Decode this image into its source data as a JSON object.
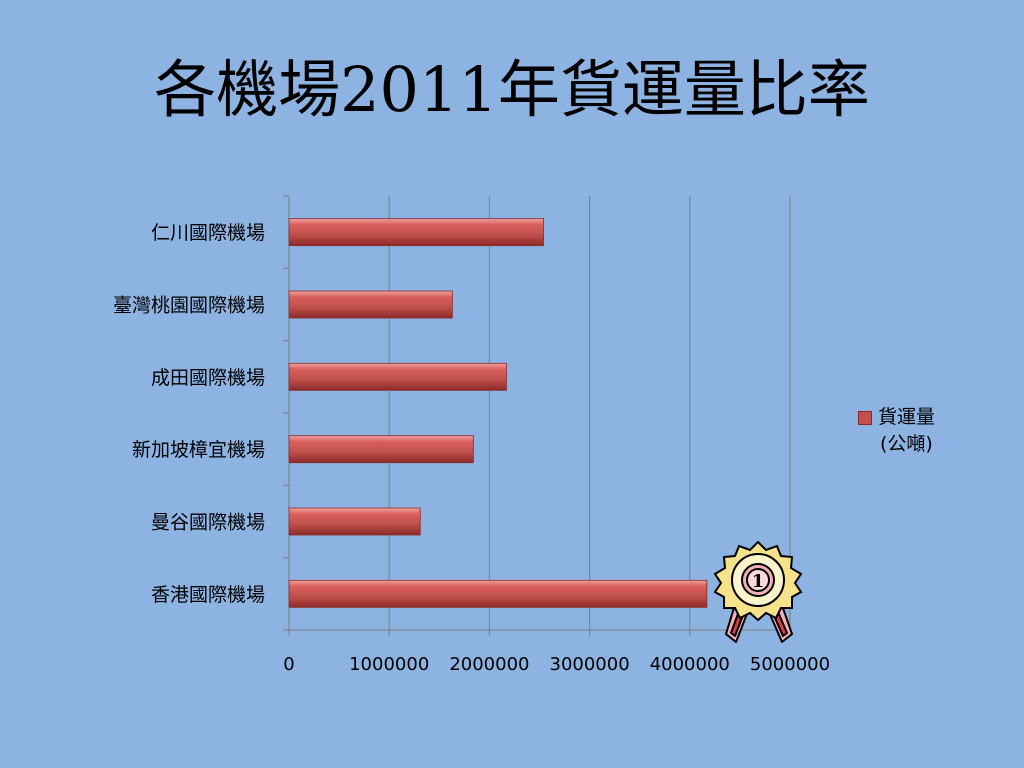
{
  "title": "各機場2011年貨運量比率",
  "legend": {
    "label": "貨運量",
    "unit": "(公噸)"
  },
  "badge": {
    "rank": "1"
  },
  "chart_data": {
    "type": "bar",
    "orientation": "horizontal",
    "categories": [
      "仁川國際機場",
      "臺灣桃園國際機場",
      "成田國際機場",
      "新加坡樟宜機場",
      "曼谷國際機場",
      "香港國際機場"
    ],
    "series": [
      {
        "name": "貨運量 (公噸)",
        "values": [
          2540000,
          1630000,
          2170000,
          1840000,
          1310000,
          4170000
        ],
        "color": "#c0504d"
      }
    ],
    "xticks": [
      "0",
      "1000000",
      "2000000",
      "3000000",
      "4000000",
      "5000000"
    ],
    "xlim": [
      0,
      5000000
    ],
    "grid": true,
    "legend_position": "right"
  }
}
